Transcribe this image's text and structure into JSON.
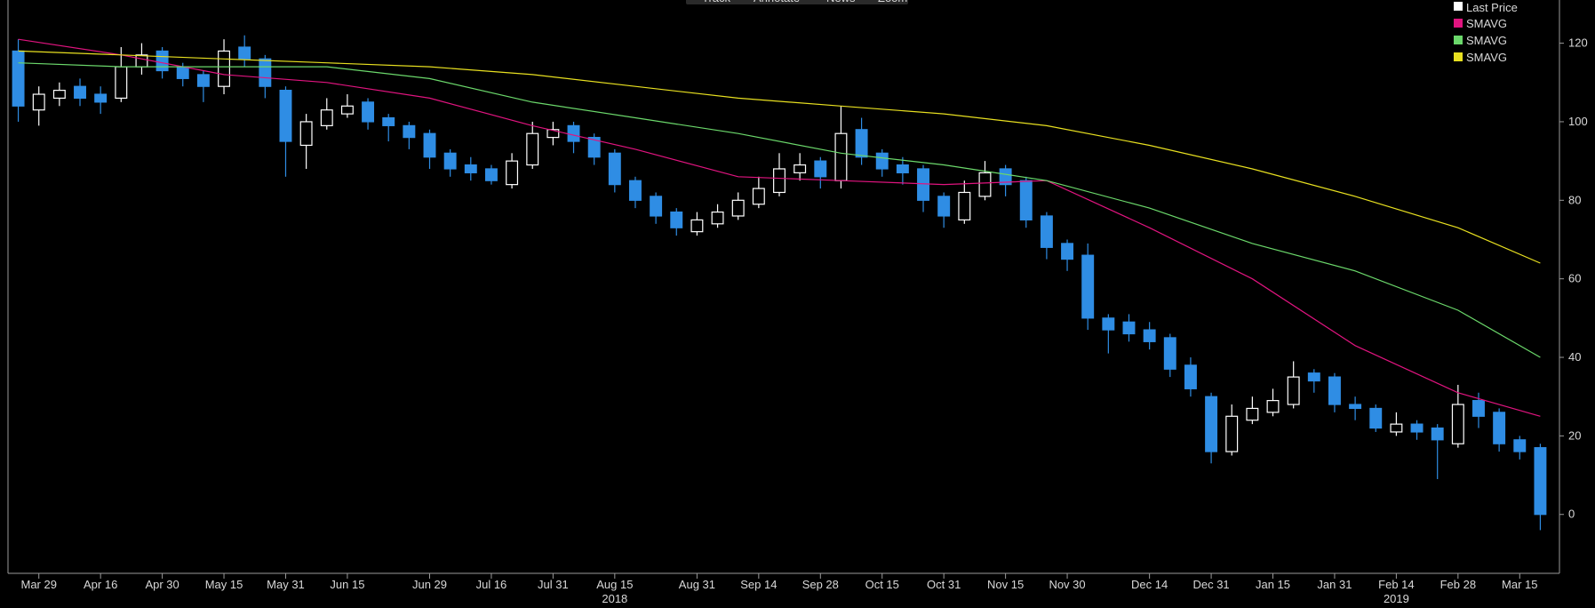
{
  "toolbar": [
    "Track",
    "Annotate",
    "News",
    "Zoom"
  ],
  "chart_data": {
    "type": "candlestick",
    "price_name": "Last Price",
    "price_color": "#ffffff",
    "up_color": "#ffffff",
    "down_color": "#2f8de4",
    "categories": [
      null,
      "Mar 29",
      null,
      null,
      "Apr 16",
      null,
      null,
      "Apr 30",
      null,
      null,
      "May 15",
      null,
      null,
      "May 31",
      null,
      null,
      "Jun 15",
      null,
      null,
      null,
      "Jun 29",
      null,
      null,
      "Jul 16",
      null,
      null,
      "Jul 31",
      null,
      null,
      "Aug 15",
      null,
      null,
      null,
      "Aug 31",
      null,
      null,
      "Sep 14",
      null,
      null,
      "Sep 28",
      null,
      null,
      "Oct 15",
      null,
      null,
      "Oct 31",
      null,
      null,
      "Nov 15",
      null,
      null,
      "Nov 30",
      null,
      null,
      null,
      "Dec 14",
      null,
      null,
      "Dec 31",
      null,
      null,
      "Jan 15",
      null,
      null,
      "Jan 31",
      null,
      null,
      "Feb 14",
      null,
      null,
      "Feb 28",
      null,
      null,
      "Mar 15",
      null
    ],
    "years": [
      {
        "label": "2018",
        "category": 29
      },
      {
        "label": "2019",
        "category": 67
      }
    ],
    "open": [
      118,
      103,
      106,
      109,
      107,
      106,
      114,
      118,
      114,
      112,
      109,
      119,
      116,
      108,
      94,
      99,
      102,
      105,
      101,
      99,
      97,
      92,
      89,
      88,
      84,
      89,
      96,
      99,
      96,
      92,
      85,
      81,
      77,
      72,
      74,
      76,
      79,
      82,
      87,
      90,
      85,
      98,
      92,
      89,
      88,
      81,
      75,
      81,
      88,
      85,
      76,
      69,
      66,
      50,
      49,
      47,
      45,
      38,
      30,
      16,
      24,
      26,
      28,
      36,
      35,
      28,
      27,
      21,
      23,
      22,
      18,
      29,
      26,
      19,
      17
    ],
    "high": [
      121,
      109,
      110,
      111,
      109,
      119,
      120,
      119,
      115,
      113,
      121,
      122,
      117,
      109,
      102,
      106,
      107,
      106,
      102,
      100,
      98,
      93,
      91,
      89,
      92,
      100,
      100,
      100,
      97,
      93,
      86,
      82,
      78,
      77,
      79,
      82,
      86,
      92,
      92,
      91,
      104,
      101,
      93,
      91,
      89,
      82,
      85,
      90,
      89,
      86,
      77,
      70,
      69,
      51,
      51,
      49,
      46,
      40,
      31,
      28,
      30,
      32,
      39,
      37,
      36,
      30,
      28,
      26,
      24,
      23,
      33,
      31,
      27,
      20,
      18
    ],
    "low": [
      100,
      99,
      104,
      104,
      102,
      105,
      112,
      111,
      109,
      105,
      107,
      114,
      106,
      86,
      88,
      98,
      101,
      98,
      95,
      93,
      88,
      86,
      85,
      84,
      83,
      88,
      94,
      92,
      89,
      82,
      78,
      74,
      71,
      71,
      73,
      75,
      78,
      81,
      85,
      83,
      83,
      89,
      86,
      84,
      77,
      73,
      74,
      80,
      81,
      73,
      65,
      62,
      47,
      41,
      44,
      42,
      35,
      30,
      13,
      15,
      23,
      25,
      27,
      31,
      26,
      24,
      21,
      20,
      19,
      9,
      17,
      22,
      16,
      14,
      -4
    ],
    "close": [
      104,
      107,
      108,
      106,
      105,
      114,
      117,
      113,
      111,
      109,
      118,
      116,
      109,
      95,
      100,
      103,
      104,
      100,
      99,
      96,
      91,
      88,
      87,
      85,
      90,
      97,
      98,
      95,
      91,
      84,
      80,
      76,
      73,
      75,
      77,
      80,
      83,
      88,
      89,
      86,
      97,
      91,
      88,
      87,
      80,
      76,
      82,
      87,
      84,
      75,
      68,
      65,
      50,
      47,
      46,
      44,
      37,
      32,
      16,
      25,
      27,
      29,
      35,
      34,
      28,
      27,
      22,
      23,
      21,
      19,
      28,
      25,
      18,
      16,
      0
    ],
    "series": [
      {
        "name": "SMAVG",
        "color": "#e0147f",
        "x": [
          0,
          5,
          10,
          15,
          20,
          25,
          30,
          35,
          40,
          45,
          50,
          55,
          60,
          65,
          70,
          74
        ],
        "values": [
          121,
          117,
          112,
          110,
          106,
          99,
          93,
          86,
          85,
          84,
          85,
          73,
          60,
          43,
          31,
          25
        ]
      },
      {
        "name": "SMAVG",
        "color": "#6bd86b",
        "x": [
          0,
          5,
          10,
          15,
          20,
          25,
          30,
          35,
          40,
          45,
          50,
          55,
          60,
          65,
          70,
          74
        ],
        "values": [
          115,
          114,
          114,
          114,
          111,
          105,
          101,
          97,
          92,
          89,
          85,
          78,
          69,
          62,
          52,
          40
        ]
      },
      {
        "name": "SMAVG",
        "color": "#e8e020",
        "x": [
          0,
          5,
          10,
          15,
          20,
          25,
          30,
          35,
          40,
          45,
          50,
          55,
          60,
          65,
          70,
          74
        ],
        "values": [
          118,
          117,
          116,
          115,
          114,
          112,
          109,
          106,
          104,
          102,
          99,
          94,
          88,
          81,
          73,
          64
        ]
      }
    ],
    "ylim": [
      -15,
      131
    ],
    "yticks": [
      0,
      20,
      40,
      60,
      80,
      100,
      120
    ]
  }
}
